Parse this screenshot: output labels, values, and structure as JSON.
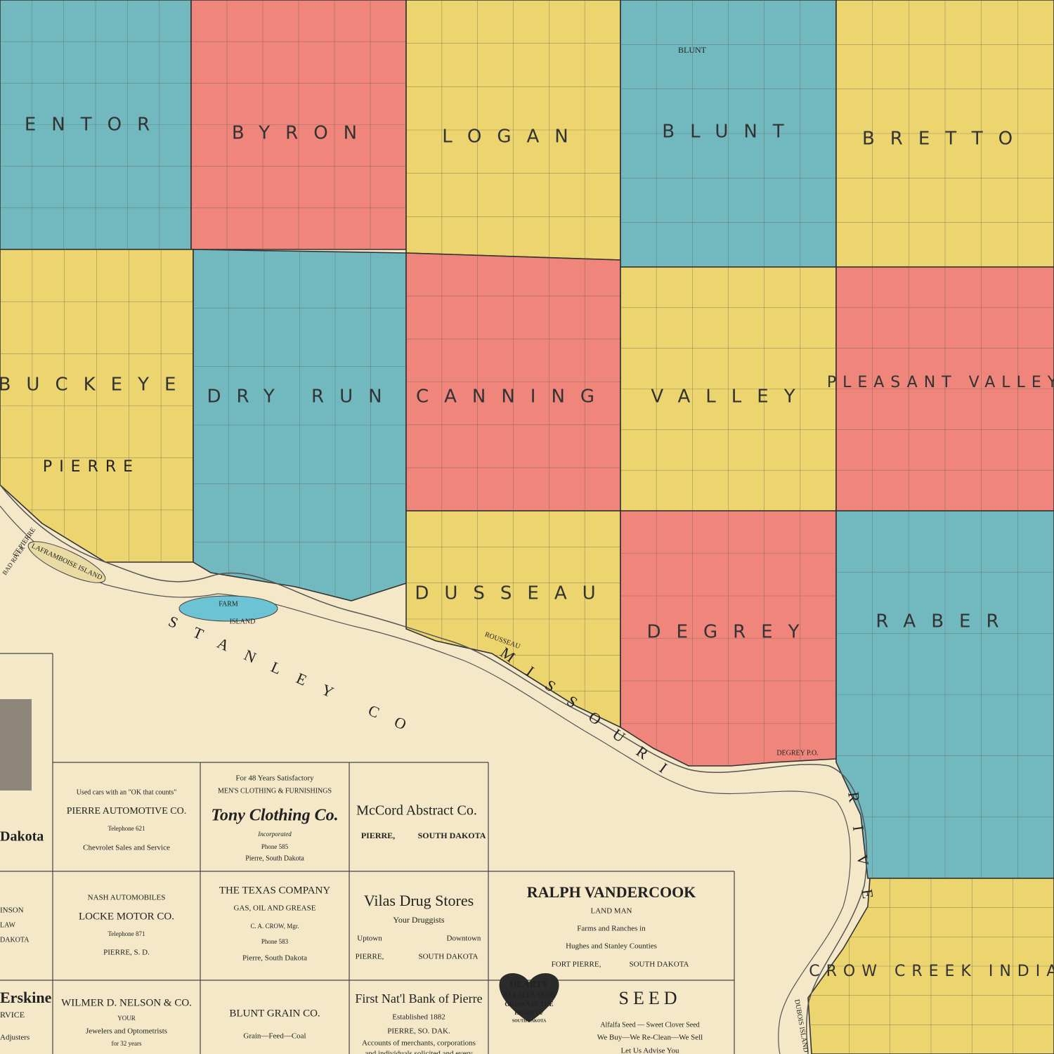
{
  "townships": [
    {
      "name": "ENTOR",
      "color": "#72b9bf"
    },
    {
      "name": "BYRON",
      "color": "#ef857b"
    },
    {
      "name": "LOGAN",
      "color": "#ecd46e"
    },
    {
      "name": "BLUNT",
      "color": "#72b9bf"
    },
    {
      "name": "BRETTO",
      "color": "#ecd46e"
    },
    {
      "name": "BUCKEYE",
      "color": "#ecd46e"
    },
    {
      "name": "DRY RUN",
      "color": "#72b9bf"
    },
    {
      "name": "CANNING",
      "color": "#ef857b"
    },
    {
      "name": "VALLEY",
      "color": "#ecd46e"
    },
    {
      "name": "PLEASANT VALLEY",
      "color": "#ef857b"
    },
    {
      "name": "DUSSEAU",
      "color": "#ecd46e"
    },
    {
      "name": "DEGREY",
      "color": "#ef857b"
    },
    {
      "name": "RABER",
      "color": "#72b9bf"
    },
    {
      "name": "CROW CREEK INDIAN",
      "color": "#ecd46e"
    }
  ],
  "places": [
    "PIERRE",
    "BLUNT",
    "FARM",
    "ISLAND",
    "LAFRAMBOISE ISLAND",
    "FT PIERRE",
    "BAD RIVER",
    "ROUSSEAU",
    "DEGREY P.O.",
    "STANLEY CO",
    "MISSOURI",
    "RIVE",
    "DUBOIS ISLAND"
  ],
  "left_column": [
    "Dakota",
    "INSON",
    "LAW",
    "DAKOTA",
    "Erskine",
    "RVICE",
    "Adjusters"
  ],
  "ads": [
    {
      "lines": [
        "Used cars with an \"OK that counts\"",
        "PIERRE AUTOMOTIVE CO.",
        "Telephone 621",
        "Chevrolet Sales and Service"
      ]
    },
    {
      "lines": [
        "For 48 Years Satisfactory",
        "MEN'S CLOTHING & FURNISHINGS",
        "Tony Clothing Co.",
        "Incorporated",
        "Phone 585",
        "Pierre, South Dakota"
      ]
    },
    {
      "lines": [
        "McCord Abstract Co.",
        "PIERRE,",
        "SOUTH DAKOTA"
      ]
    },
    {
      "lines": [
        "NASH AUTOMOBILES",
        "LOCKE MOTOR CO.",
        "Telephone 871",
        "PIERRE, S. D."
      ]
    },
    {
      "lines": [
        "THE TEXAS COMPANY",
        "GAS, OIL AND GREASE",
        "C. A. CROW, Mgr.",
        "Phone 583",
        "Pierre, South Dakota"
      ]
    },
    {
      "lines": [
        "Vilas Drug Stores",
        "Your Druggists",
        "Uptown",
        "Downtown",
        "PIERRE,",
        "SOUTH DAKOTA"
      ]
    },
    {
      "lines": [
        "RALPH VANDERCOOK",
        "LAND MAN",
        "Farms and Ranches in",
        "Hughes and Stanley Counties",
        "FORT PIERRE,",
        "SOUTH DAKOTA"
      ]
    },
    {
      "lines": [
        "WILMER D. NELSON & CO.",
        "YOUR",
        "Jewelers and Optometrists",
        "for 32 years"
      ]
    },
    {
      "lines": [
        "BLUNT GRAIN CO.",
        "Grain—Feed—Coal"
      ]
    },
    {
      "lines": [
        "First Nat'l Bank of Pierre",
        "Established 1882",
        "PIERRE, SO. DAK.",
        "Accounts of merchants, corporations",
        "and individuals solicited and every"
      ]
    },
    {
      "lines": [
        "HEARTY",
        "ALFALFA SEED",
        "GROWN IN THE",
        "HEART OF",
        "SOUTH DAKOTA",
        "SEED",
        "Alfalfa Seed — Sweet Clover Seed",
        "We Buy—We Re-Clean—We Sell",
        "Let Us Advise You"
      ]
    }
  ]
}
